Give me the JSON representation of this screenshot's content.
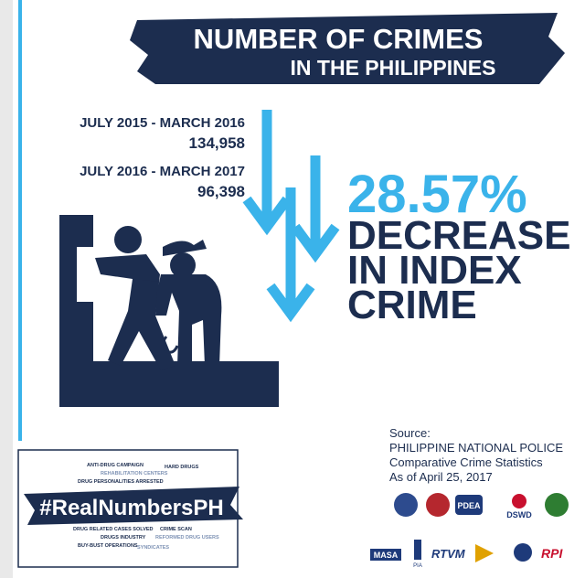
{
  "header": {
    "title_line1": "NUMBER OF CRIMES",
    "title_line2": "IN THE PHILIPPINES"
  },
  "periods": [
    {
      "label": "JULY 2015 - MARCH 2016",
      "count": "134,958"
    },
    {
      "label": "JULY 2016 - MARCH 2017",
      "count": "96,398"
    }
  ],
  "highlight": {
    "percent": "28.57%",
    "lines": [
      "DECREASE",
      "IN INDEX",
      "CRIME"
    ]
  },
  "source": {
    "heading": "Source:",
    "lines": [
      "PHILIPPINE NATIONAL POLICE",
      "Comparative Crime Statistics",
      "As of April 25, 2017"
    ]
  },
  "banner": {
    "hashtag": "#RealNumbersPH",
    "words": [
      "ANTI-DRUG CAMPAIGN",
      "REHABILITATION CENTERS",
      "DRUG PERSONALITIES ARRESTED",
      "HARD DRUGS",
      "DRUG RELATED CASES SOLVED",
      "CRIME SCAN",
      "DRUGS INDUSTRY",
      "REFORMED DRUG USERS",
      "BUY-BUST OPERATIONS",
      "SYNDICATES"
    ]
  },
  "logos": [
    "PDEA",
    "DSWD",
    "MASA",
    "PIA",
    "RTVM",
    "RPI"
  ]
}
